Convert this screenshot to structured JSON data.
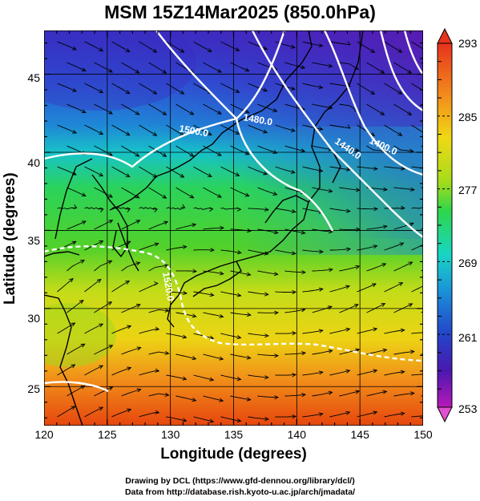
{
  "title": "MSM 15Z14Mar2025 (850.0hPa)",
  "xlabel": "Longitude (degrees)",
  "ylabel": "Latitude  (degrees)",
  "x_ticks": [
    "120",
    "125",
    "130",
    "135",
    "140",
    "145",
    "150"
  ],
  "y_ticks": [
    "25",
    "30",
    "35",
    "40",
    "45"
  ],
  "colorbar_ticks": [
    "293",
    "285",
    "277",
    "269",
    "261",
    "253"
  ],
  "contour_labels": [
    "1500.0",
    "1480.0",
    "1440.0",
    "1400.0",
    "1520.0"
  ],
  "credits": {
    "line1": "Drawing by DCL (https://www.gfd-dennou.org/library/dcl/)",
    "line2": "Data from http://database.rish.kyoto-u.ac.jp/arch/jmadata/"
  },
  "chart_data": {
    "type": "heatmap",
    "x_range": [
      120,
      150
    ],
    "y_range": [
      22.5,
      47.8
    ],
    "colorbar_range": [
      253,
      293
    ],
    "colors": {
      "warm": "#e83a0c",
      "orange": "#f2901a",
      "yellow": "#e6e017",
      "green": "#2ed64a",
      "cyan": "#19d6c8",
      "blue": "#2355d8",
      "purple": "#5b1fb4"
    }
  }
}
